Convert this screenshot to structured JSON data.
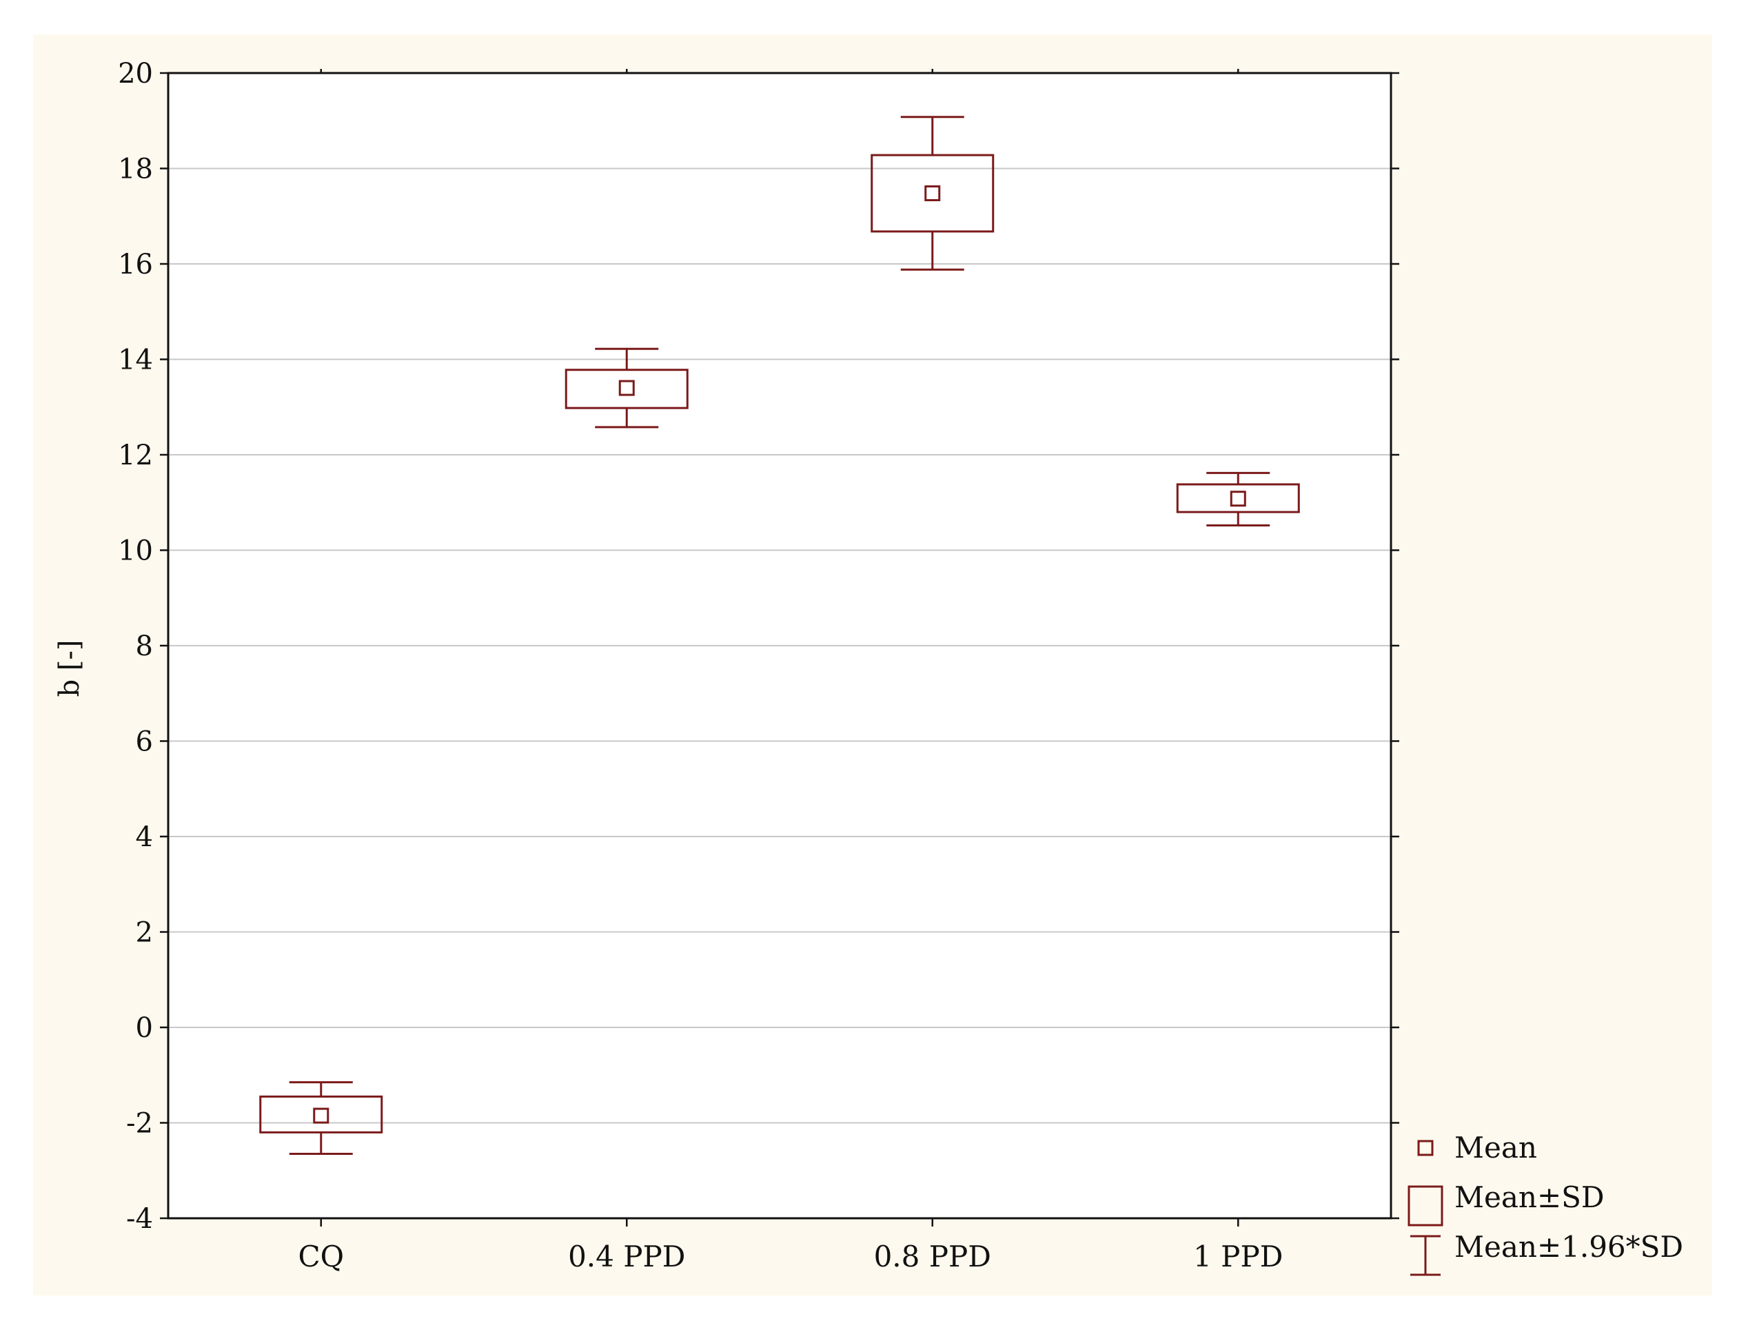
{
  "chart_data": {
    "type": "boxplot",
    "ylabel": "b [-]",
    "ylim": [
      -4,
      20
    ],
    "yticks": [
      -4,
      -2,
      0,
      2,
      4,
      6,
      8,
      10,
      12,
      14,
      16,
      18,
      20
    ],
    "categories": [
      "CQ",
      "0.4 PPD",
      "0.8 PPD",
      "1 PPD"
    ],
    "series": [
      {
        "category": "CQ",
        "mean": -1.85,
        "sd_low": -2.2,
        "sd_high": -1.45,
        "ci_low": -2.65,
        "ci_high": -1.15
      },
      {
        "category": "0.4 PPD",
        "mean": 13.4,
        "sd_low": 12.98,
        "sd_high": 13.78,
        "ci_low": 12.58,
        "ci_high": 14.22
      },
      {
        "category": "0.8 PPD",
        "mean": 17.48,
        "sd_low": 16.68,
        "sd_high": 18.28,
        "ci_low": 15.88,
        "ci_high": 19.08
      },
      {
        "category": "1 PPD",
        "mean": 11.08,
        "sd_low": 10.8,
        "sd_high": 11.38,
        "ci_low": 10.52,
        "ci_high": 11.62
      }
    ],
    "legend": {
      "position": "bottom-right",
      "entries": [
        "Mean",
        "Mean±SD",
        "Mean±1.96*SD"
      ]
    },
    "grid": true,
    "colors": {
      "series": "#7b1a1a",
      "grid": "#c8c8c8",
      "background": "#fef9ee",
      "plot_background": "#ffffff"
    }
  }
}
